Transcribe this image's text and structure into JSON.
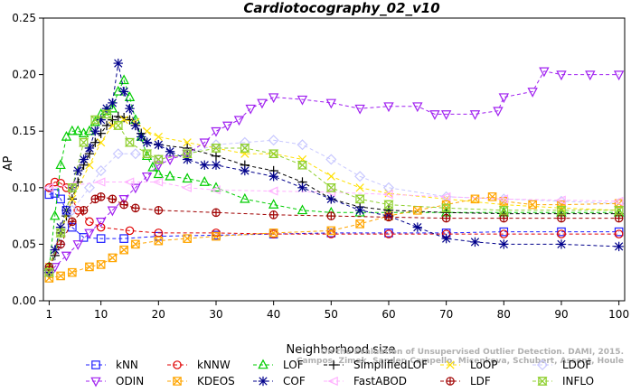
{
  "chart_data": {
    "type": "line",
    "title": "Cardiotocography_02_v10",
    "xlabel": "Neighborhood size",
    "ylabel": "AP",
    "xlim": [
      0,
      101
    ],
    "ylim": [
      0,
      0.25
    ],
    "x_ticks": [
      1,
      10,
      20,
      30,
      40,
      50,
      60,
      70,
      80,
      90,
      100
    ],
    "y_ticks": [
      0.0,
      0.05,
      0.1,
      0.15,
      0.2,
      0.25
    ],
    "y_tick_labels": [
      "0.00",
      "0.05",
      "0.10",
      "0.15",
      "0.20",
      "0.25"
    ],
    "legend_position": "bottom",
    "watermark": [
      "On the Evaluation of Unsupervised Outlier Detection. DAMI, 2015.",
      "Campos, Zimek, Sander, Campello, Micenkova, Schubert, Assent, Houle"
    ],
    "series": [
      {
        "name": "kNN",
        "color": "#1f1fff",
        "marker": "square",
        "points": [
          [
            1,
            0.094
          ],
          [
            2,
            0.095
          ],
          [
            3,
            0.09
          ],
          [
            4,
            0.08
          ],
          [
            5,
            0.065
          ],
          [
            7,
            0.056
          ],
          [
            10,
            0.055
          ],
          [
            14,
            0.055
          ],
          [
            20,
            0.057
          ],
          [
            30,
            0.058
          ],
          [
            40,
            0.059
          ],
          [
            50,
            0.06
          ],
          [
            60,
            0.06
          ],
          [
            70,
            0.06
          ],
          [
            80,
            0.061
          ],
          [
            90,
            0.061
          ],
          [
            100,
            0.061
          ]
        ]
      },
      {
        "name": "kNNW",
        "color": "#e00000",
        "marker": "circle",
        "points": [
          [
            1,
            0.1
          ],
          [
            2,
            0.105
          ],
          [
            3,
            0.104
          ],
          [
            4,
            0.1
          ],
          [
            6,
            0.08
          ],
          [
            8,
            0.07
          ],
          [
            10,
            0.065
          ],
          [
            15,
            0.062
          ],
          [
            20,
            0.06
          ],
          [
            30,
            0.06
          ],
          [
            40,
            0.059
          ],
          [
            50,
            0.059
          ],
          [
            60,
            0.059
          ],
          [
            70,
            0.059
          ],
          [
            80,
            0.059
          ],
          [
            90,
            0.059
          ],
          [
            100,
            0.059
          ]
        ]
      },
      {
        "name": "LOF",
        "color": "#00cc00",
        "marker": "triangle-up",
        "points": [
          [
            1,
            0.03
          ],
          [
            2,
            0.075
          ],
          [
            3,
            0.12
          ],
          [
            4,
            0.145
          ],
          [
            5,
            0.15
          ],
          [
            6,
            0.15
          ],
          [
            7,
            0.148
          ],
          [
            8,
            0.15
          ],
          [
            9,
            0.158
          ],
          [
            10,
            0.165
          ],
          [
            11,
            0.168
          ],
          [
            12,
            0.17
          ],
          [
            13,
            0.185
          ],
          [
            14,
            0.195
          ],
          [
            15,
            0.18
          ],
          [
            16,
            0.16
          ],
          [
            17,
            0.145
          ],
          [
            18,
            0.128
          ],
          [
            19,
            0.118
          ],
          [
            20,
            0.112
          ],
          [
            22,
            0.11
          ],
          [
            25,
            0.108
          ],
          [
            28,
            0.105
          ],
          [
            30,
            0.1
          ],
          [
            35,
            0.09
          ],
          [
            40,
            0.085
          ],
          [
            45,
            0.08
          ],
          [
            50,
            0.078
          ],
          [
            55,
            0.078
          ],
          [
            60,
            0.078
          ],
          [
            70,
            0.078
          ],
          [
            80,
            0.078
          ],
          [
            90,
            0.078
          ],
          [
            100,
            0.078
          ]
        ]
      },
      {
        "name": "SimplifiedLOF",
        "color": "#000000",
        "marker": "plus",
        "points": [
          [
            1,
            0.025
          ],
          [
            2,
            0.04
          ],
          [
            3,
            0.06
          ],
          [
            4,
            0.075
          ],
          [
            5,
            0.09
          ],
          [
            6,
            0.105
          ],
          [
            7,
            0.12
          ],
          [
            8,
            0.13
          ],
          [
            9,
            0.14
          ],
          [
            10,
            0.148
          ],
          [
            11,
            0.155
          ],
          [
            12,
            0.16
          ],
          [
            13,
            0.163
          ],
          [
            14,
            0.162
          ],
          [
            15,
            0.16
          ],
          [
            16,
            0.155
          ],
          [
            17,
            0.148
          ],
          [
            18,
            0.14
          ],
          [
            20,
            0.138
          ],
          [
            25,
            0.135
          ],
          [
            30,
            0.128
          ],
          [
            35,
            0.12
          ],
          [
            40,
            0.115
          ],
          [
            45,
            0.105
          ],
          [
            50,
            0.09
          ],
          [
            55,
            0.083
          ],
          [
            60,
            0.08
          ],
          [
            70,
            0.078
          ],
          [
            80,
            0.077
          ],
          [
            90,
            0.077
          ],
          [
            100,
            0.077
          ]
        ]
      },
      {
        "name": "LoOP",
        "color": "#ffe000",
        "marker": "x",
        "points": [
          [
            1,
            0.03
          ],
          [
            3,
            0.06
          ],
          [
            5,
            0.09
          ],
          [
            8,
            0.12
          ],
          [
            10,
            0.14
          ],
          [
            12,
            0.155
          ],
          [
            14,
            0.16
          ],
          [
            16,
            0.158
          ],
          [
            18,
            0.15
          ],
          [
            20,
            0.145
          ],
          [
            25,
            0.14
          ],
          [
            30,
            0.135
          ],
          [
            35,
            0.13
          ],
          [
            40,
            0.13
          ],
          [
            45,
            0.125
          ],
          [
            50,
            0.11
          ],
          [
            55,
            0.1
          ],
          [
            60,
            0.095
          ],
          [
            70,
            0.09
          ],
          [
            80,
            0.085
          ],
          [
            90,
            0.082
          ],
          [
            100,
            0.08
          ]
        ]
      },
      {
        "name": "LDOF",
        "color": "#c8c8ff",
        "marker": "diamond",
        "points": [
          [
            1,
            0.025
          ],
          [
            3,
            0.05
          ],
          [
            5,
            0.08
          ],
          [
            8,
            0.1
          ],
          [
            10,
            0.115
          ],
          [
            13,
            0.13
          ],
          [
            16,
            0.13
          ],
          [
            20,
            0.125
          ],
          [
            25,
            0.13
          ],
          [
            30,
            0.138
          ],
          [
            35,
            0.14
          ],
          [
            40,
            0.142
          ],
          [
            45,
            0.138
          ],
          [
            50,
            0.125
          ],
          [
            55,
            0.11
          ],
          [
            60,
            0.1
          ],
          [
            70,
            0.092
          ],
          [
            80,
            0.09
          ],
          [
            90,
            0.088
          ],
          [
            100,
            0.086
          ]
        ]
      },
      {
        "name": "ODIN",
        "color": "#a020f0",
        "marker": "triangle-down",
        "points": [
          [
            1,
            0.025
          ],
          [
            2,
            0.03
          ],
          [
            4,
            0.04
          ],
          [
            6,
            0.05
          ],
          [
            8,
            0.06
          ],
          [
            10,
            0.07
          ],
          [
            12,
            0.08
          ],
          [
            14,
            0.09
          ],
          [
            16,
            0.1
          ],
          [
            18,
            0.11
          ],
          [
            20,
            0.12
          ],
          [
            22,
            0.125
          ],
          [
            25,
            0.13
          ],
          [
            28,
            0.14
          ],
          [
            30,
            0.15
          ],
          [
            32,
            0.155
          ],
          [
            34,
            0.16
          ],
          [
            36,
            0.17
          ],
          [
            38,
            0.175
          ],
          [
            40,
            0.18
          ],
          [
            45,
            0.178
          ],
          [
            50,
            0.175
          ],
          [
            55,
            0.17
          ],
          [
            60,
            0.172
          ],
          [
            65,
            0.172
          ],
          [
            68,
            0.165
          ],
          [
            70,
            0.165
          ],
          [
            75,
            0.165
          ],
          [
            79,
            0.168
          ],
          [
            80,
            0.18
          ],
          [
            85,
            0.185
          ],
          [
            87,
            0.203
          ],
          [
            90,
            0.2
          ],
          [
            95,
            0.2
          ],
          [
            100,
            0.2
          ]
        ]
      },
      {
        "name": "KDEOS",
        "color": "#ffa500",
        "marker": "square-x",
        "points": [
          [
            1,
            0.02
          ],
          [
            3,
            0.022
          ],
          [
            5,
            0.025
          ],
          [
            8,
            0.03
          ],
          [
            10,
            0.032
          ],
          [
            12,
            0.038
          ],
          [
            14,
            0.045
          ],
          [
            16,
            0.05
          ],
          [
            20,
            0.053
          ],
          [
            25,
            0.055
          ],
          [
            30,
            0.057
          ],
          [
            40,
            0.06
          ],
          [
            50,
            0.062
          ],
          [
            55,
            0.068
          ],
          [
            60,
            0.075
          ],
          [
            65,
            0.08
          ],
          [
            70,
            0.085
          ],
          [
            75,
            0.09
          ],
          [
            78,
            0.092
          ],
          [
            80,
            0.088
          ],
          [
            85,
            0.085
          ],
          [
            90,
            0.085
          ],
          [
            100,
            0.086
          ]
        ]
      },
      {
        "name": "COF",
        "color": "#00008b",
        "marker": "asterisk",
        "points": [
          [
            1,
            0.025
          ],
          [
            2,
            0.045
          ],
          [
            3,
            0.065
          ],
          [
            4,
            0.08
          ],
          [
            5,
            0.1
          ],
          [
            6,
            0.115
          ],
          [
            7,
            0.125
          ],
          [
            8,
            0.135
          ],
          [
            9,
            0.15
          ],
          [
            10,
            0.16
          ],
          [
            11,
            0.17
          ],
          [
            12,
            0.175
          ],
          [
            13,
            0.21
          ],
          [
            14,
            0.185
          ],
          [
            15,
            0.17
          ],
          [
            16,
            0.155
          ],
          [
            17,
            0.145
          ],
          [
            18,
            0.14
          ],
          [
            20,
            0.138
          ],
          [
            22,
            0.132
          ],
          [
            25,
            0.125
          ],
          [
            28,
            0.12
          ],
          [
            30,
            0.12
          ],
          [
            35,
            0.115
          ],
          [
            40,
            0.11
          ],
          [
            45,
            0.1
          ],
          [
            50,
            0.09
          ],
          [
            55,
            0.08
          ],
          [
            60,
            0.075
          ],
          [
            65,
            0.065
          ],
          [
            70,
            0.055
          ],
          [
            75,
            0.052
          ],
          [
            80,
            0.05
          ],
          [
            90,
            0.05
          ],
          [
            100,
            0.048
          ]
        ]
      },
      {
        "name": "FastABOD",
        "color": "#ffb0ff",
        "marker": "triangle-left",
        "points": [
          [
            1,
            0.1
          ],
          [
            5,
            0.102
          ],
          [
            10,
            0.105
          ],
          [
            15,
            0.105
          ],
          [
            20,
            0.105
          ],
          [
            25,
            0.1
          ],
          [
            30,
            0.098
          ],
          [
            40,
            0.097
          ],
          [
            50,
            0.096
          ],
          [
            60,
            0.094
          ],
          [
            70,
            0.092
          ],
          [
            80,
            0.09
          ],
          [
            90,
            0.089
          ],
          [
            100,
            0.088
          ]
        ]
      },
      {
        "name": "LDF",
        "color": "#a00000",
        "marker": "circle-plus",
        "points": [
          [
            1,
            0.03
          ],
          [
            3,
            0.05
          ],
          [
            5,
            0.07
          ],
          [
            7,
            0.08
          ],
          [
            9,
            0.09
          ],
          [
            10,
            0.092
          ],
          [
            12,
            0.09
          ],
          [
            14,
            0.085
          ],
          [
            16,
            0.082
          ],
          [
            20,
            0.08
          ],
          [
            30,
            0.078
          ],
          [
            40,
            0.076
          ],
          [
            50,
            0.075
          ],
          [
            60,
            0.074
          ],
          [
            70,
            0.073
          ],
          [
            80,
            0.073
          ],
          [
            90,
            0.073
          ],
          [
            100,
            0.073
          ]
        ]
      },
      {
        "name": "INFLO",
        "color": "#90d030",
        "marker": "hourglass",
        "points": [
          [
            1,
            0.025
          ],
          [
            3,
            0.06
          ],
          [
            5,
            0.1
          ],
          [
            7,
            0.14
          ],
          [
            9,
            0.16
          ],
          [
            11,
            0.165
          ],
          [
            13,
            0.155
          ],
          [
            15,
            0.14
          ],
          [
            18,
            0.13
          ],
          [
            20,
            0.125
          ],
          [
            25,
            0.13
          ],
          [
            30,
            0.135
          ],
          [
            35,
            0.135
          ],
          [
            40,
            0.13
          ],
          [
            45,
            0.12
          ],
          [
            50,
            0.1
          ],
          [
            55,
            0.09
          ],
          [
            60,
            0.085
          ],
          [
            70,
            0.082
          ],
          [
            80,
            0.08
          ],
          [
            90,
            0.08
          ],
          [
            100,
            0.08
          ]
        ]
      }
    ]
  }
}
